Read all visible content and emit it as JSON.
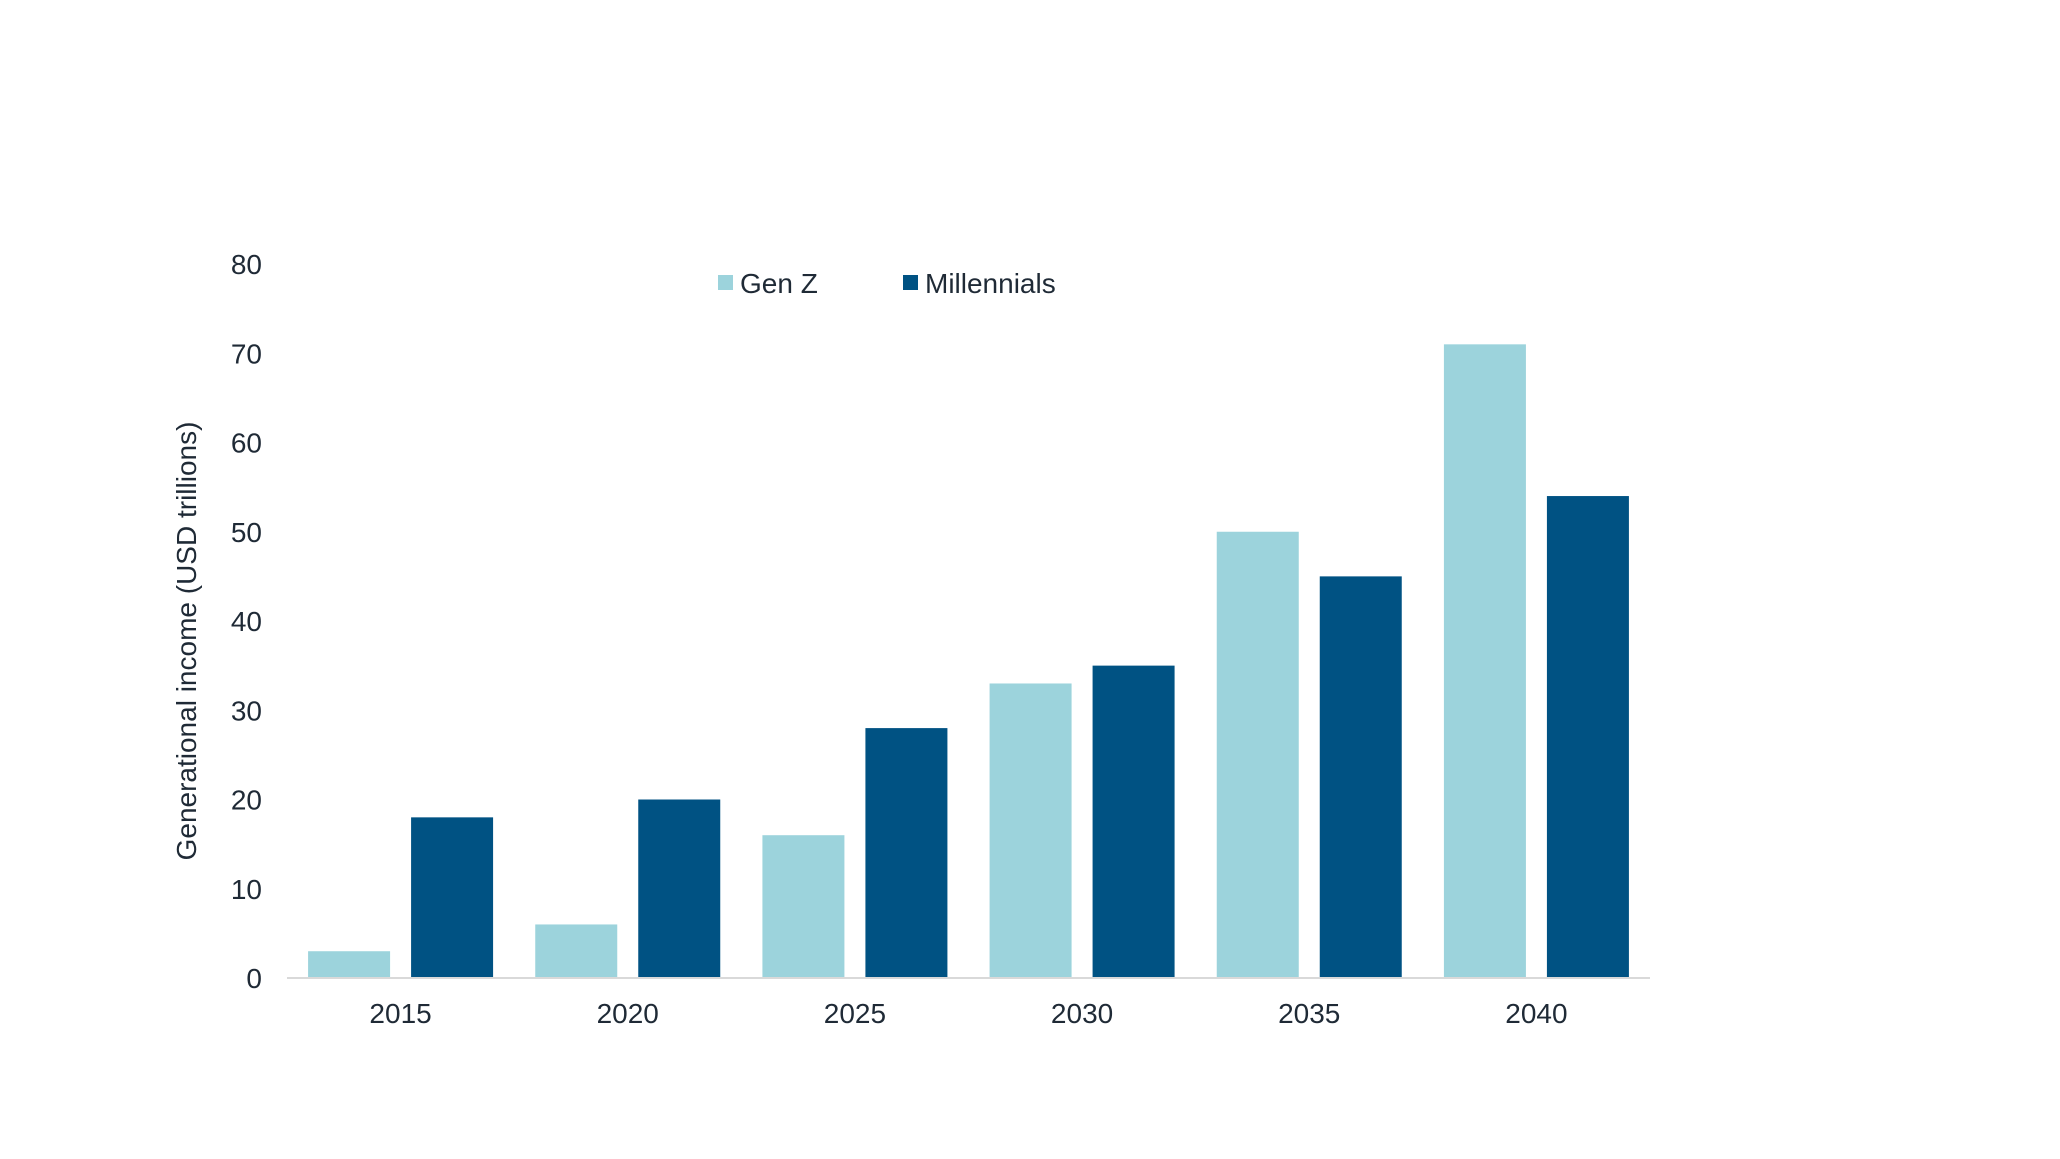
{
  "chart_data": {
    "type": "bar",
    "categories": [
      "2015",
      "2020",
      "2025",
      "2030",
      "2035",
      "2040"
    ],
    "series": [
      {
        "name": "Gen Z",
        "color": "#9cd3dc",
        "values": [
          3,
          6,
          16,
          33,
          50,
          71
        ]
      },
      {
        "name": "Millennials",
        "color": "#005283",
        "values": [
          18,
          20,
          28,
          35,
          45,
          54
        ]
      }
    ],
    "ylabel": "Generational income (USD trillions)",
    "xlabel": "",
    "title": "",
    "ylim": [
      0,
      80
    ],
    "yticks": [
      0,
      10,
      20,
      30,
      40,
      50,
      60,
      70,
      80
    ],
    "grid": false,
    "legend_position": "top-center"
  }
}
